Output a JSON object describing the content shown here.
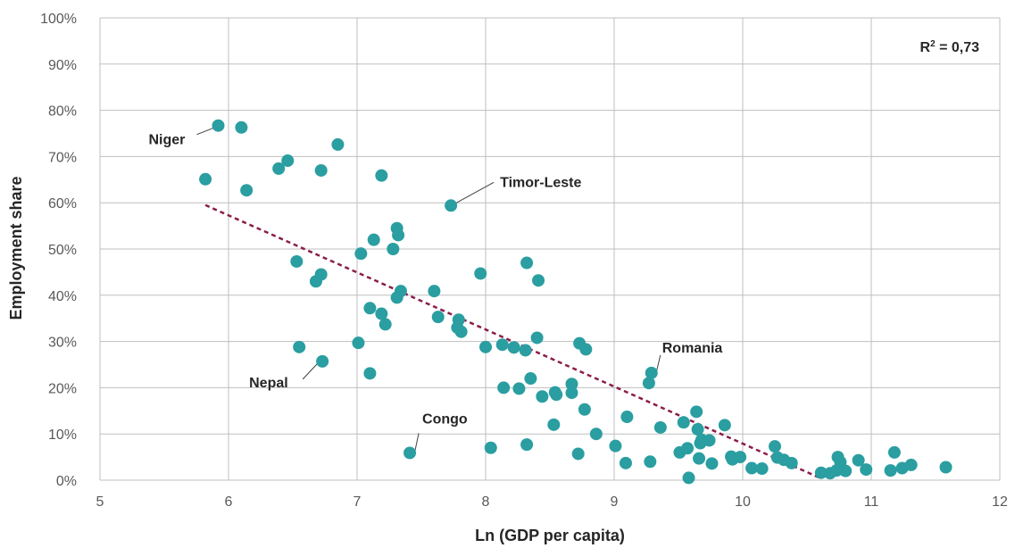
{
  "chart_data": {
    "type": "scatter",
    "xlabel": "Ln (GDP per capita)",
    "ylabel": "Employment share",
    "xlim": [
      5,
      12
    ],
    "ylim": [
      0,
      100
    ],
    "x_ticks": [
      "5",
      "6",
      "7",
      "8",
      "9",
      "10",
      "11",
      "12"
    ],
    "y_ticks": [
      "0%",
      "10%",
      "20%",
      "30%",
      "40%",
      "50%",
      "60%",
      "70%",
      "80%",
      "90%",
      "100%"
    ],
    "grid": true,
    "r2_label": "R² = 0,73",
    "trendline": {
      "x": [
        5.82,
        10.6
      ],
      "y": [
        59.5,
        0.5
      ]
    },
    "colors": {
      "points": "#2a9ea1",
      "trendline": "#8b1d4a",
      "grid": "#bfbfbf"
    },
    "annotations": [
      {
        "label": "Niger",
        "x": 5.92,
        "y": 76.7
      },
      {
        "label": "Timor-Leste",
        "x": 7.73,
        "y": 59.4
      },
      {
        "label": "Romania",
        "x": 9.29,
        "y": 23.2
      },
      {
        "label": "Nepal",
        "x": 6.73,
        "y": 25.7
      },
      {
        "label": "Congo",
        "x": 7.41,
        "y": 5.9
      }
    ],
    "points": [
      [
        5.82,
        65.1
      ],
      [
        5.92,
        76.7
      ],
      [
        6.1,
        76.3
      ],
      [
        6.14,
        62.7
      ],
      [
        6.39,
        67.4
      ],
      [
        6.46,
        69.1
      ],
      [
        6.72,
        67.0
      ],
      [
        6.85,
        72.6
      ],
      [
        7.19,
        65.9
      ],
      [
        6.53,
        47.3
      ],
      [
        6.68,
        43.0
      ],
      [
        6.72,
        44.5
      ],
      [
        6.55,
        28.8
      ],
      [
        6.73,
        25.7
      ],
      [
        7.01,
        29.7
      ],
      [
        7.03,
        49.0
      ],
      [
        7.13,
        52.0
      ],
      [
        7.1,
        37.2
      ],
      [
        7.1,
        23.1
      ],
      [
        7.19,
        36.0
      ],
      [
        7.22,
        33.7
      ],
      [
        7.28,
        50.0
      ],
      [
        7.31,
        54.5
      ],
      [
        7.32,
        53.0
      ],
      [
        7.31,
        39.5
      ],
      [
        7.34,
        40.9
      ],
      [
        7.41,
        5.9
      ],
      [
        7.6,
        40.9
      ],
      [
        7.63,
        35.3
      ],
      [
        7.73,
        59.4
      ],
      [
        7.79,
        34.7
      ],
      [
        7.78,
        33.0
      ],
      [
        7.81,
        32.1
      ],
      [
        7.96,
        44.7
      ],
      [
        8.0,
        28.8
      ],
      [
        8.04,
        7.0
      ],
      [
        8.13,
        29.3
      ],
      [
        8.14,
        20.0
      ],
      [
        8.22,
        28.7
      ],
      [
        8.26,
        19.8
      ],
      [
        8.31,
        28.1
      ],
      [
        8.32,
        47.0
      ],
      [
        8.32,
        7.7
      ],
      [
        8.35,
        22.0
      ],
      [
        8.4,
        30.8
      ],
      [
        8.41,
        43.2
      ],
      [
        8.44,
        18.1
      ],
      [
        8.53,
        12.0
      ],
      [
        8.54,
        19.0
      ],
      [
        8.55,
        18.5
      ],
      [
        8.67,
        20.8
      ],
      [
        8.67,
        18.9
      ],
      [
        8.72,
        5.7
      ],
      [
        8.73,
        29.6
      ],
      [
        8.78,
        28.3
      ],
      [
        8.77,
        15.3
      ],
      [
        8.86,
        10.0
      ],
      [
        9.01,
        7.4
      ],
      [
        9.09,
        3.7
      ],
      [
        9.1,
        13.7
      ],
      [
        9.27,
        21.0
      ],
      [
        9.28,
        4.0
      ],
      [
        9.29,
        23.2
      ],
      [
        9.36,
        11.4
      ],
      [
        9.51,
        6.0
      ],
      [
        9.54,
        12.5
      ],
      [
        9.57,
        6.9
      ],
      [
        9.58,
        0.5
      ],
      [
        9.64,
        14.8
      ],
      [
        9.65,
        11.0
      ],
      [
        9.66,
        4.7
      ],
      [
        9.67,
        8.0
      ],
      [
        9.68,
        8.7
      ],
      [
        9.74,
        8.6
      ],
      [
        9.76,
        3.6
      ],
      [
        9.86,
        11.9
      ],
      [
        9.91,
        5.1
      ],
      [
        9.92,
        4.5
      ],
      [
        9.98,
        5.0
      ],
      [
        10.07,
        2.6
      ],
      [
        10.15,
        2.5
      ],
      [
        10.25,
        7.3
      ],
      [
        10.27,
        4.9
      ],
      [
        10.32,
        4.4
      ],
      [
        10.38,
        3.7
      ],
      [
        10.61,
        1.6
      ],
      [
        10.68,
        1.5
      ],
      [
        10.73,
        2.1
      ],
      [
        10.74,
        5.0
      ],
      [
        10.76,
        3.9
      ],
      [
        10.8,
        2.0
      ],
      [
        10.9,
        4.3
      ],
      [
        10.96,
        2.3
      ],
      [
        11.15,
        2.1
      ],
      [
        11.18,
        6.0
      ],
      [
        11.24,
        2.6
      ],
      [
        11.31,
        3.3
      ],
      [
        11.58,
        2.8
      ]
    ]
  }
}
